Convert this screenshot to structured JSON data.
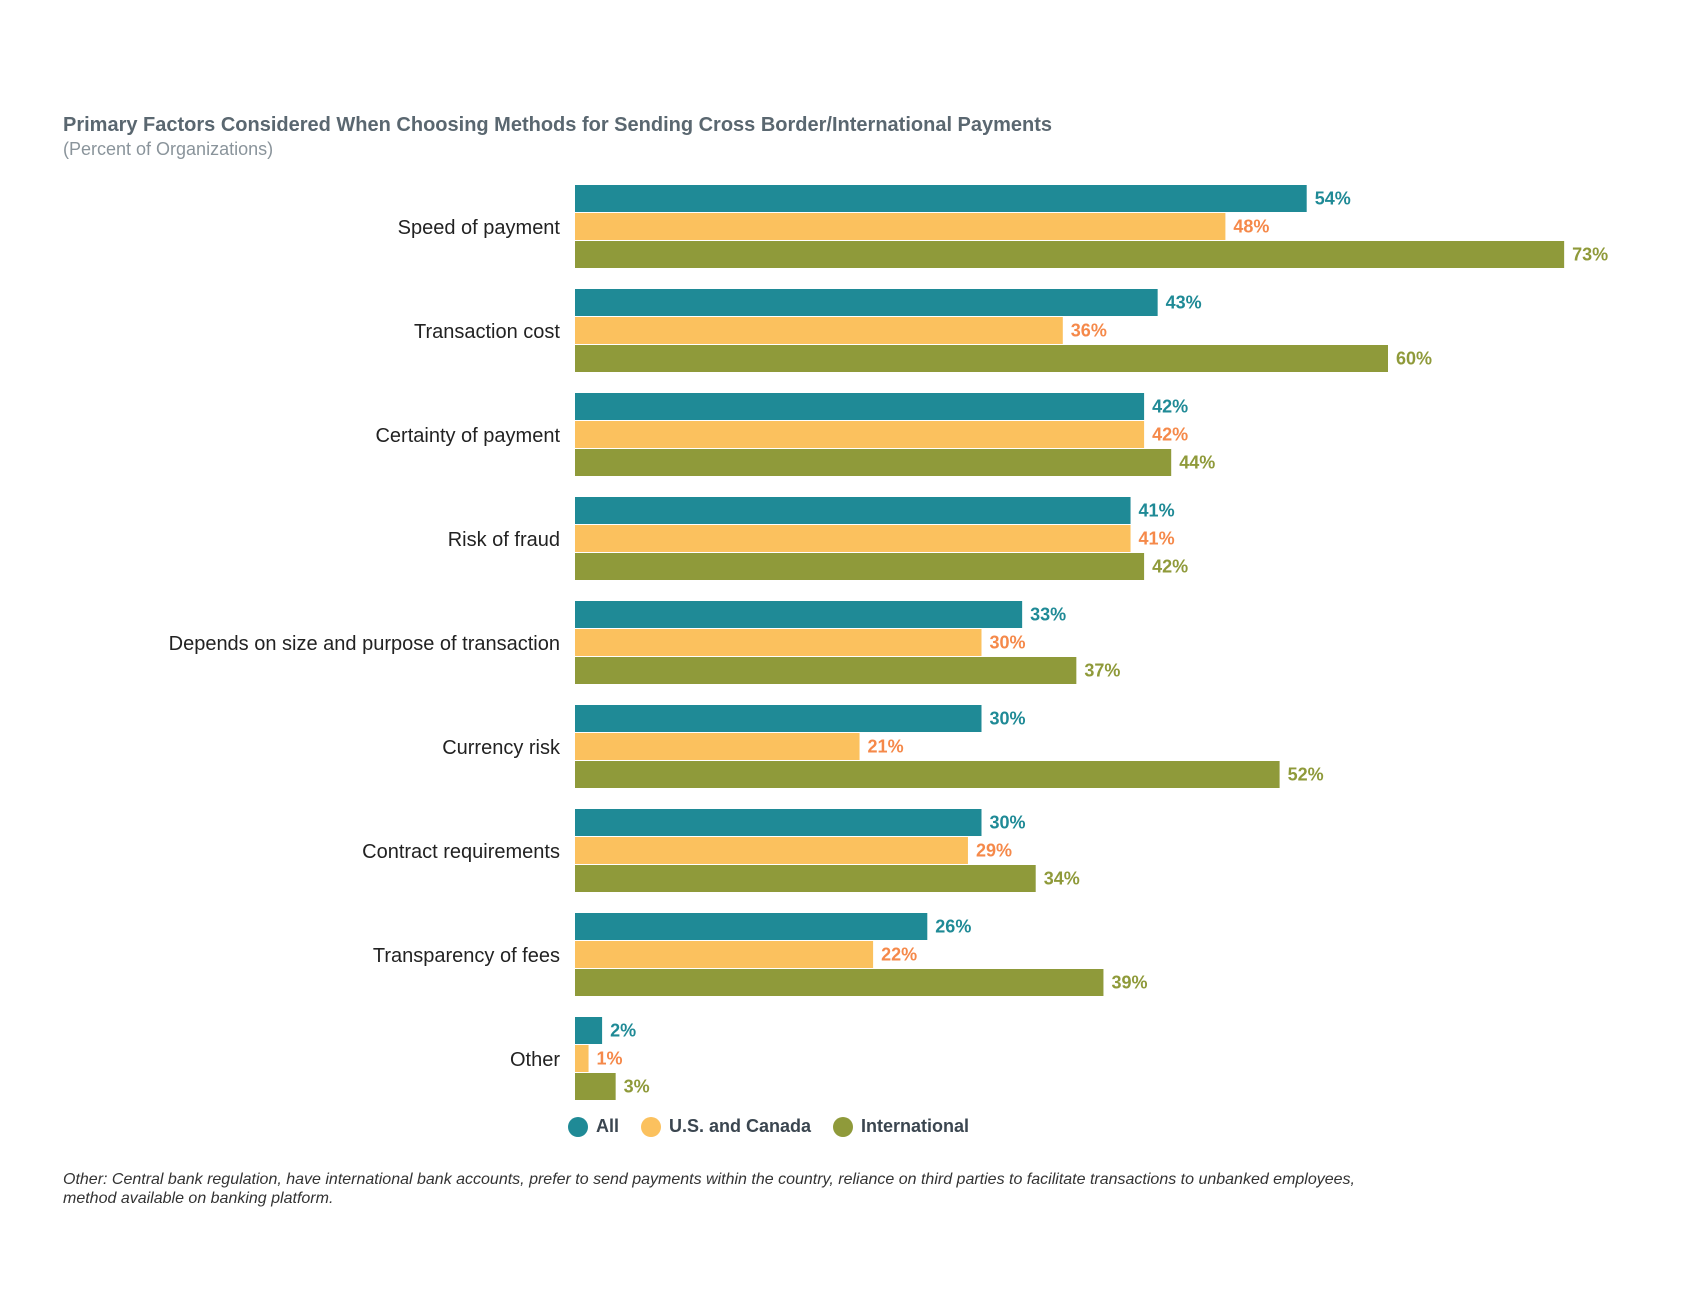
{
  "chart_data": {
    "type": "bar",
    "orientation": "horizontal",
    "title": "Primary Factors Considered When Choosing Methods for Sending Cross Border/International Payments",
    "subtitle": "(Percent of Organizations)",
    "categories": [
      "Speed of payment",
      "Transaction cost",
      "Certainty of payment",
      "Risk of fraud",
      "Depends on size and purpose of transaction",
      "Currency risk",
      "Contract requirements",
      "Transparency of fees",
      "Other"
    ],
    "series": [
      {
        "name": "All",
        "color": "#1f8a96",
        "values": [
          54,
          43,
          42,
          41,
          33,
          30,
          30,
          26,
          2
        ]
      },
      {
        "name": "U.S. and Canada",
        "color": "#fbc15e",
        "values": [
          48,
          36,
          42,
          41,
          30,
          21,
          29,
          22,
          1
        ]
      },
      {
        "name": "International",
        "color": "#8f9a3a",
        "values": [
          73,
          60,
          44,
          42,
          37,
          52,
          34,
          39,
          3
        ]
      }
    ],
    "label_colors": [
      "#1f8a96",
      "#f5894a",
      "#8f9a3a"
    ],
    "value_suffix": "%",
    "xlim": [
      0,
      100
    ],
    "grid": false,
    "legend_position": "bottom"
  },
  "footnote": "Other: Central bank regulation, have international bank accounts, prefer to send payments within the country, reliance on third parties to facilitate transactions to unbanked employees, method available on banking platform."
}
